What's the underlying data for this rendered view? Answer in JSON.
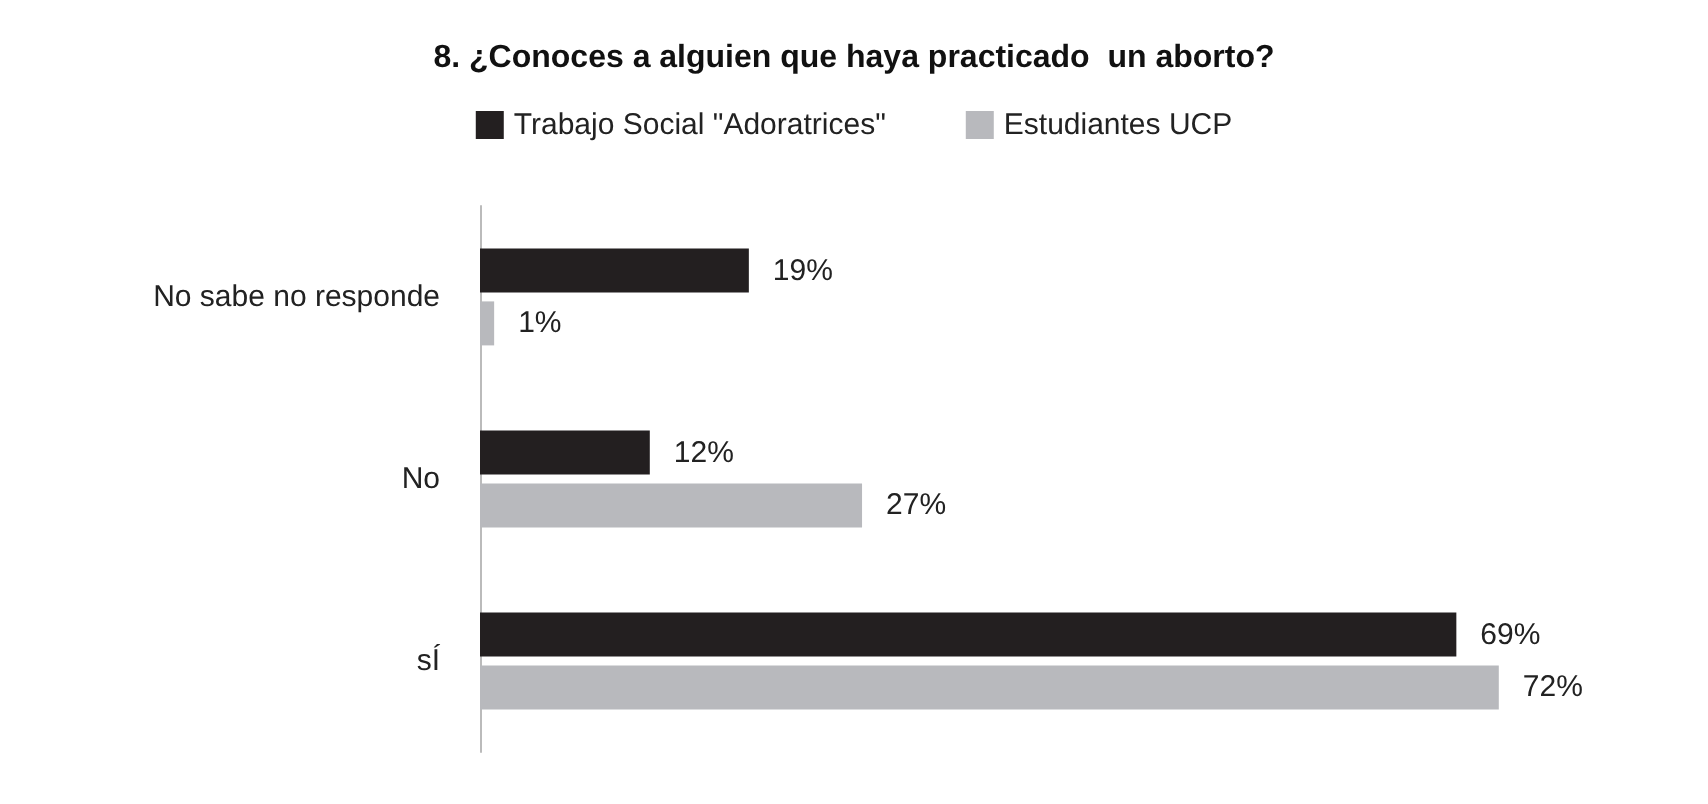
{
  "chart_data": {
    "type": "bar",
    "orientation": "horizontal",
    "title": "8. ¿Conoces a alguien que haya practicado  un aborto?",
    "categories": [
      "No sabe no responde",
      "No",
      "sÍ"
    ],
    "series": [
      {
        "name": "Trabajo Social \"Adoratrices\"",
        "color": "#231f20",
        "values": [
          19,
          12,
          69
        ],
        "value_labels": [
          "19%",
          "12%",
          "69%"
        ]
      },
      {
        "name": "Estudiantes UCP",
        "color": "#b8b9bd",
        "values": [
          1,
          27,
          72
        ],
        "value_labels": [
          "1%",
          "27%",
          "72%"
        ]
      }
    ],
    "legend": "top",
    "grid": false
  }
}
